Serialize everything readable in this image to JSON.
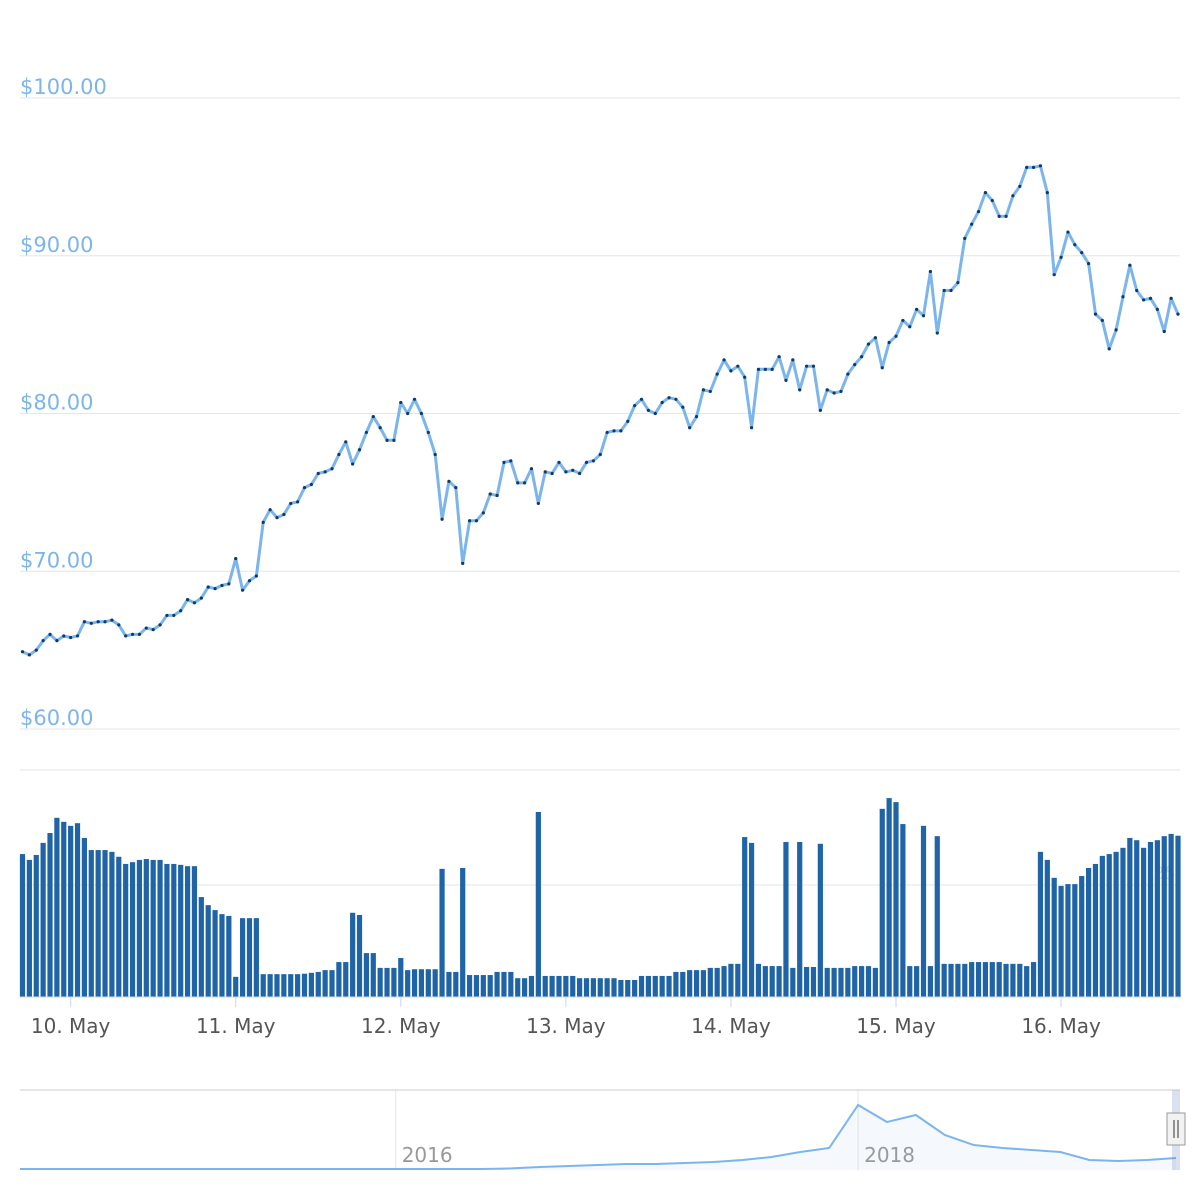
{
  "chart_data": [
    {
      "type": "line",
      "color": "#7cb5ec",
      "marker_color": "#0d3a6a",
      "ylim": [
        60,
        100
      ],
      "yticks": [
        {
          "value": 60,
          "label": "$60.00"
        },
        {
          "value": 70,
          "label": "$70.00"
        },
        {
          "value": 80,
          "label": "$80.00"
        },
        {
          "value": 90,
          "label": "$90.00"
        },
        {
          "value": 100,
          "label": "$100.00"
        }
      ],
      "grid": true,
      "values": [
        64.9,
        64.7,
        65.0,
        65.6,
        66.0,
        65.6,
        65.9,
        65.8,
        65.9,
        66.8,
        66.7,
        66.8,
        66.8,
        66.9,
        66.6,
        65.9,
        66.0,
        66.0,
        66.4,
        66.3,
        66.6,
        67.2,
        67.2,
        67.5,
        68.2,
        68.0,
        68.3,
        69.0,
        68.9,
        69.1,
        69.2,
        70.8,
        68.8,
        69.4,
        69.7,
        73.1,
        73.9,
        73.4,
        73.6,
        74.3,
        74.4,
        75.3,
        75.5,
        76.2,
        76.3,
        76.5,
        77.4,
        78.2,
        76.8,
        77.7,
        78.8,
        79.8,
        79.1,
        78.3,
        78.3,
        80.7,
        80.0,
        80.9,
        80.0,
        78.8,
        77.4,
        73.3,
        75.7,
        75.3,
        70.5,
        73.2,
        73.2,
        73.7,
        74.9,
        74.8,
        76.9,
        77.0,
        75.6,
        75.6,
        76.5,
        74.3,
        76.3,
        76.2,
        76.9,
        76.3,
        76.4,
        76.2,
        76.9,
        77.0,
        77.4,
        78.8,
        78.9,
        78.9,
        79.5,
        80.5,
        80.9,
        80.2,
        80.0,
        80.7,
        81.0,
        80.9,
        80.4,
        79.1,
        79.8,
        81.5,
        81.4,
        82.5,
        83.4,
        82.7,
        83.0,
        82.3,
        79.1,
        82.8,
        82.8,
        82.8,
        83.6,
        82.1,
        83.4,
        81.5,
        83.0,
        83.0,
        80.2,
        81.5,
        81.3,
        81.4,
        82.5,
        83.1,
        83.6,
        84.4,
        84.8,
        82.9,
        84.5,
        84.9,
        85.9,
        85.5,
        86.6,
        86.2,
        89.0,
        85.1,
        87.8,
        87.8,
        88.3,
        91.1,
        92.0,
        92.8,
        94.0,
        93.5,
        92.5,
        92.5,
        93.8,
        94.4,
        95.6,
        95.6,
        95.7,
        94.0,
        88.8,
        89.9,
        91.5,
        90.7,
        90.2,
        89.5,
        86.3,
        85.9,
        84.1,
        85.3,
        87.4,
        89.4,
        87.8,
        87.2,
        87.3,
        86.6,
        85.2,
        87.3,
        86.3
      ]
    },
    {
      "type": "bar",
      "color": "#1f64a6",
      "ylim": [
        0,
        50
      ],
      "yticks": [
        25
      ],
      "grid": true,
      "categories": [
        null,
        null,
        null,
        null,
        null,
        null,
        null,
        "10. May",
        null,
        null,
        null,
        null,
        null,
        null,
        null,
        null,
        null,
        null,
        null,
        null,
        null,
        null,
        null,
        null,
        null,
        null,
        null,
        null,
        null,
        null,
        null,
        "11. May",
        null,
        null,
        null,
        null,
        null,
        null,
        null,
        null,
        null,
        null,
        null,
        null,
        null,
        null,
        null,
        null,
        null,
        null,
        null,
        null,
        null,
        null,
        null,
        "12. May",
        null,
        null,
        null,
        null,
        null,
        null,
        null,
        null,
        null,
        null,
        null,
        null,
        null,
        null,
        null,
        null,
        null,
        null,
        null,
        null,
        null,
        null,
        null,
        "13. May",
        null,
        null,
        null,
        null,
        null,
        null,
        null,
        null,
        null,
        null,
        null,
        null,
        null,
        null,
        null,
        null,
        null,
        null,
        null,
        null,
        null,
        null,
        null,
        "14. May",
        null,
        null,
        null,
        null,
        null,
        null,
        null,
        null,
        null,
        null,
        null,
        null,
        null,
        null,
        null,
        null,
        null,
        null,
        null,
        null,
        null,
        null,
        null,
        "15. May",
        null,
        null,
        null,
        null,
        null,
        null,
        null,
        null,
        null,
        null,
        null,
        null,
        null,
        null,
        null,
        null,
        null,
        null,
        null,
        null,
        null,
        null,
        null,
        "16. May",
        null,
        null,
        null,
        null,
        null,
        null,
        null,
        null,
        null,
        null,
        null,
        null,
        null,
        null,
        null,
        null,
        null
      ],
      "values": [
        31.9,
        30.6,
        31.7,
        34.4,
        36.6,
        40.0,
        39.1,
        38.2,
        38.8,
        35.5,
        32.8,
        32.8,
        32.8,
        32.4,
        31.3,
        29.7,
        30.1,
        30.6,
        30.8,
        30.6,
        30.6,
        29.7,
        29.7,
        29.5,
        29.2,
        29.2,
        22.3,
        20.5,
        19.4,
        18.5,
        18.1,
        4.5,
        17.6,
        17.6,
        17.6,
        5.1,
        5.1,
        5.1,
        5.1,
        5.1,
        5.1,
        5.2,
        5.4,
        5.6,
        6.0,
        6.0,
        7.8,
        7.8,
        18.8,
        18.3,
        9.8,
        9.8,
        6.5,
        6.5,
        6.5,
        8.7,
        6.0,
        6.2,
        6.2,
        6.2,
        6.2,
        28.6,
        5.6,
        5.6,
        28.8,
        4.9,
        4.9,
        4.9,
        4.9,
        5.6,
        5.6,
        5.6,
        4.2,
        4.2,
        4.7,
        41.3,
        4.7,
        4.7,
        4.7,
        4.7,
        4.7,
        4.2,
        4.2,
        4.2,
        4.2,
        4.2,
        4.2,
        3.8,
        3.8,
        3.8,
        4.7,
        4.7,
        4.7,
        4.7,
        4.7,
        5.6,
        5.6,
        6.0,
        6.0,
        6.0,
        6.5,
        6.5,
        6.9,
        7.4,
        7.4,
        35.7,
        34.4,
        7.4,
        6.9,
        6.9,
        6.9,
        34.6,
        6.5,
        34.6,
        6.7,
        6.7,
        34.2,
        6.5,
        6.5,
        6.5,
        6.5,
        6.9,
        6.9,
        6.9,
        6.5,
        42.0,
        44.4,
        43.5,
        38.6,
        6.9,
        6.9,
        38.2,
        6.9,
        35.9,
        7.4,
        7.4,
        7.4,
        7.4,
        7.8,
        7.8,
        7.8,
        7.8,
        7.8,
        7.4,
        7.4,
        7.4,
        6.9,
        7.8,
        32.4,
        30.6,
        26.6,
        24.8,
        25.2,
        25.2,
        27.0,
        28.8,
        29.7,
        31.5,
        31.9,
        32.4,
        33.3,
        35.5,
        35.0,
        33.3,
        34.6,
        35.0,
        35.9,
        36.4,
        36.0
      ]
    },
    {
      "type": "area",
      "color": "#7cb5ec",
      "ylim": [
        0,
        400
      ],
      "categories": [
        null,
        null,
        null,
        null,
        null,
        null,
        null,
        null,
        null,
        null,
        null,
        null,
        null,
        "2016",
        null,
        null,
        null,
        null,
        null,
        null,
        null,
        null,
        null,
        null,
        null,
        null,
        null,
        null,
        null,
        "2018",
        null,
        null,
        null,
        null,
        null,
        null,
        null,
        null,
        null,
        null,
        null
      ],
      "values": [
        5,
        5,
        5,
        5,
        5,
        5,
        5,
        5,
        5,
        5,
        5,
        5,
        5,
        5,
        5,
        5,
        5,
        8,
        15,
        20,
        25,
        30,
        30,
        35,
        40,
        50,
        65,
        90,
        110,
        325,
        240,
        275,
        175,
        125,
        110,
        100,
        90,
        50,
        45,
        50,
        60
      ]
    }
  ]
}
